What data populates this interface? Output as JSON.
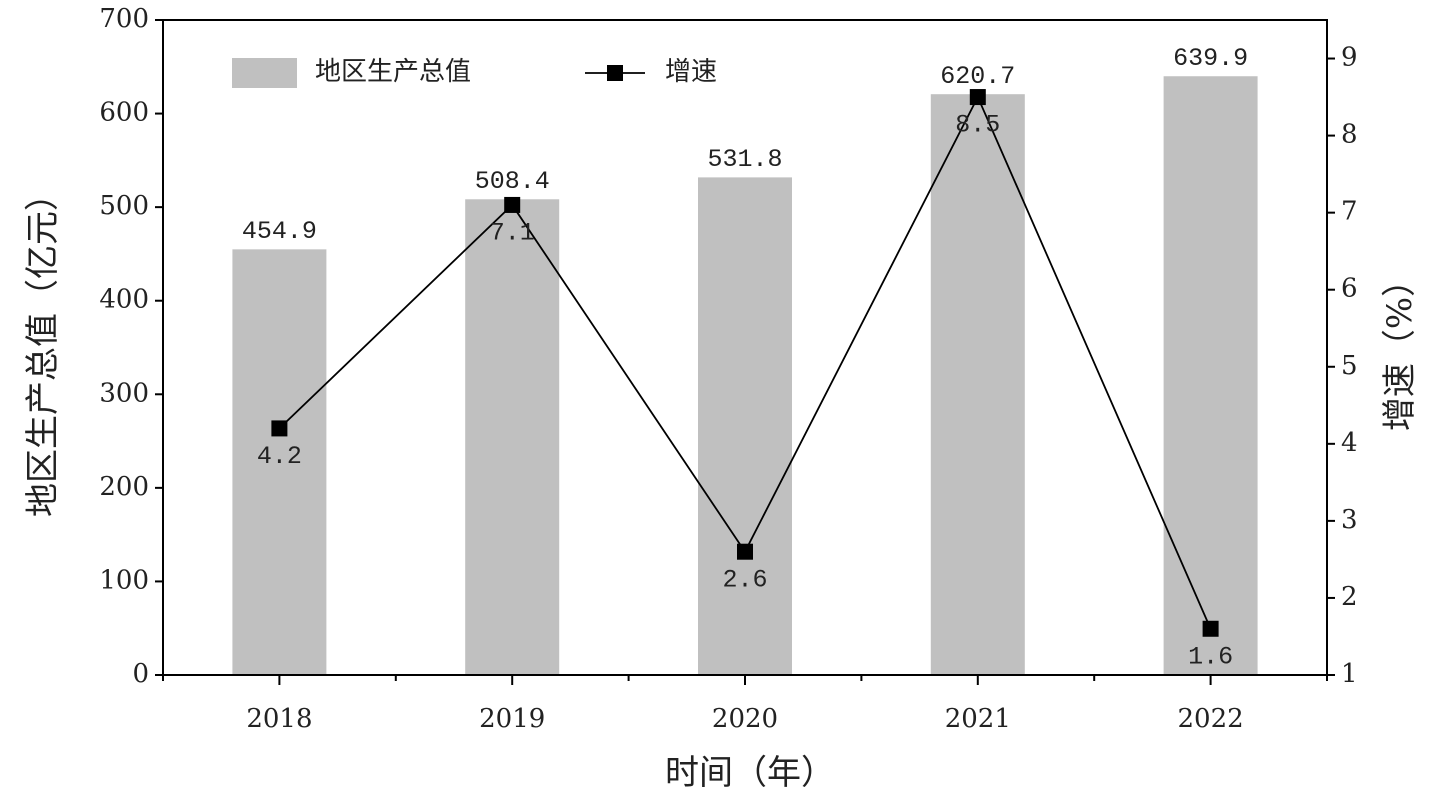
{
  "chart_data": {
    "type": "bar",
    "x_label": "时间（年）",
    "y_label": "地区生产总值（亿元）",
    "y2_label": "增速（%）",
    "categories": [
      "2018",
      "2019",
      "2020",
      "2021",
      "2022"
    ],
    "series": [
      {
        "name": "地区生产总值",
        "type": "bar",
        "color": "#c0c0c0",
        "values": [
          454.9,
          508.4,
          531.8,
          620.7,
          639.9
        ]
      },
      {
        "name": "增速",
        "type": "line",
        "color": "#000000",
        "axis": "y2",
        "values": [
          4.2,
          7.1,
          2.6,
          8.5,
          1.6
        ]
      }
    ],
    "ylim": [
      0,
      700
    ],
    "yticks": [
      0,
      100,
      200,
      300,
      400,
      500,
      600,
      700
    ],
    "y2lim": [
      1,
      9.5
    ],
    "y2ticks": [
      1,
      2,
      3,
      4,
      5,
      6,
      7,
      8,
      9
    ],
    "legend": "upper left"
  }
}
